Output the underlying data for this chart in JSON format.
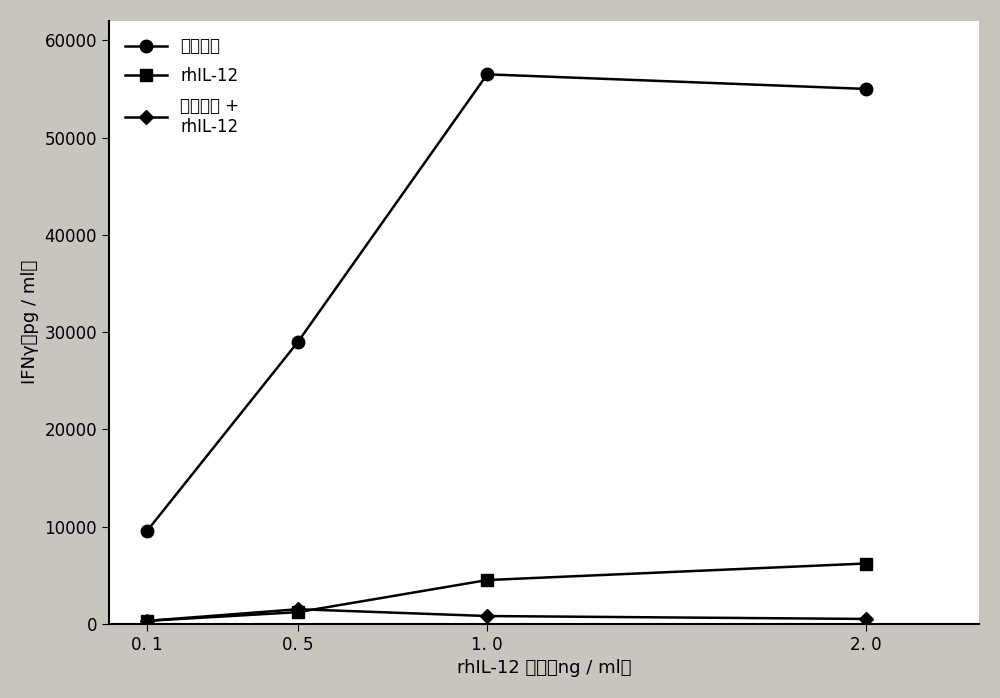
{
  "x": [
    0.1,
    0.5,
    1.0,
    2.0
  ],
  "x_labels": [
    "0. 1",
    "0. 5",
    "1. 0",
    "2. 0"
  ],
  "series": [
    {
      "label": "阴性对照",
      "y": [
        9500,
        29000,
        56500,
        55000
      ],
      "color": "#000000",
      "marker": "o",
      "linestyle": "-",
      "linewidth": 1.8,
      "markersize": 9
    },
    {
      "label": "rhIL-12",
      "y": [
        300,
        1200,
        4500,
        6200
      ],
      "color": "#000000",
      "marker": "s",
      "linestyle": "-",
      "linewidth": 1.8,
      "markersize": 9
    },
    {
      "label": "鞭毛蛋白 +\nrhIL-12",
      "y": [
        300,
        1500,
        800,
        500
      ],
      "color": "#000000",
      "marker": "D",
      "linestyle": "-",
      "linewidth": 1.8,
      "markersize": 7
    }
  ],
  "xlabel": "rhIL-12 浓度（ng / ml）",
  "ylabel": "IFNγ（pg / ml）",
  "ylim": [
    0,
    62000
  ],
  "yticks": [
    0,
    10000,
    20000,
    30000,
    40000,
    50000,
    60000
  ],
  "ytick_labels": [
    "0",
    "10000",
    "20000",
    "30000",
    "40000",
    "50000",
    "60000"
  ],
  "plot_bg_color": "#ffffff",
  "outer_bg_color": "#c8c4be",
  "legend_loc": "upper left",
  "axis_fontsize": 13,
  "tick_fontsize": 12,
  "legend_fontsize": 12
}
